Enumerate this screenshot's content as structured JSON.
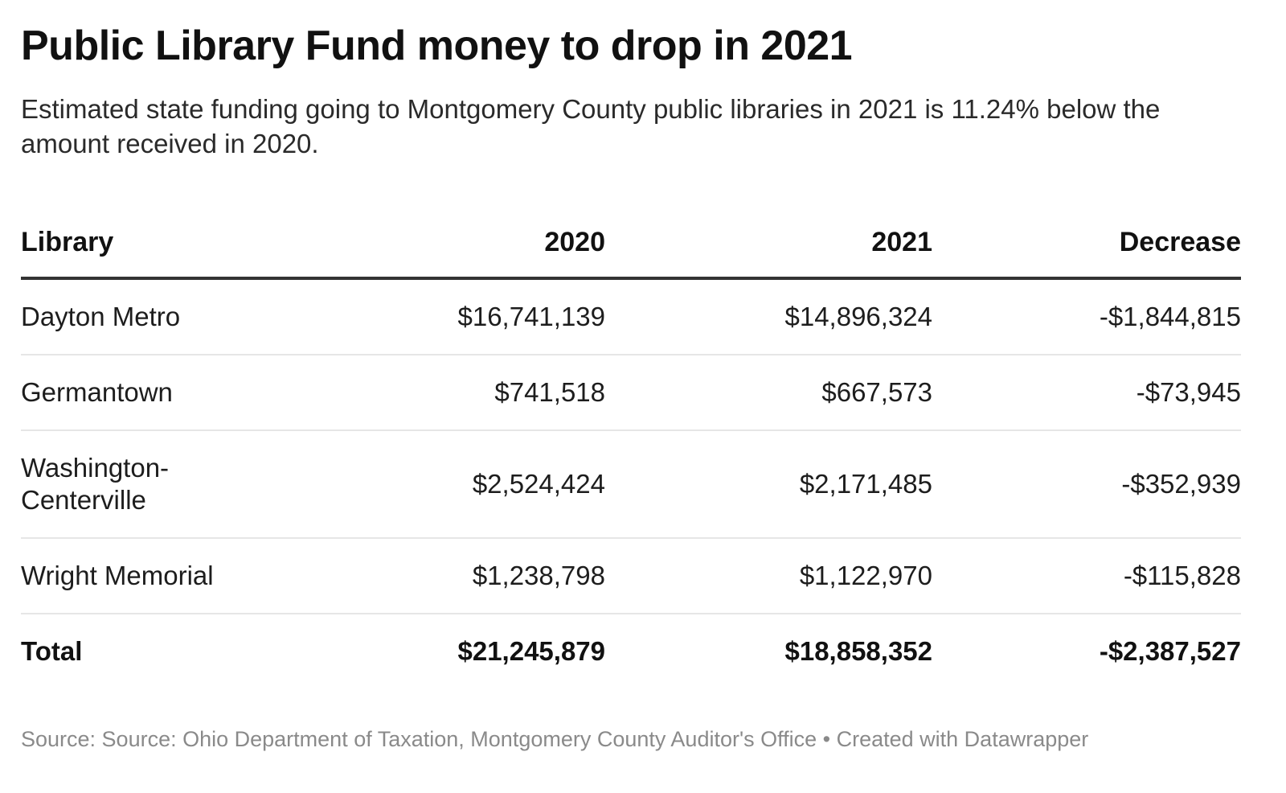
{
  "title": "Public Library Fund money to drop in 2021",
  "subtitle": "Estimated state funding going to Montgomery County public libraries in 2021 is 11.24% below the amount received in 2020.",
  "chart_data": {
    "type": "table",
    "columns": [
      "Library",
      "2020",
      "2021",
      "Decrease"
    ],
    "rows": [
      [
        "Dayton Metro",
        "$16,741,139",
        "$14,896,324",
        "-$1,844,815"
      ],
      [
        "Germantown",
        "$741,518",
        "$667,573",
        "-$73,945"
      ],
      [
        "Washington-Centerville",
        "$2,524,424",
        "$2,171,485",
        "-$352,939"
      ],
      [
        "Wright Memorial",
        "$1,238,798",
        "$1,122,970",
        "-$115,828"
      ]
    ],
    "total": [
      "Total",
      "$21,245,879",
      "$18,858,352",
      "-$2,387,527"
    ]
  },
  "footer": {
    "source": "Source: Source: Ohio Department of Taxation, Montgomery County Auditor's Office • Created with Datawrapper"
  }
}
